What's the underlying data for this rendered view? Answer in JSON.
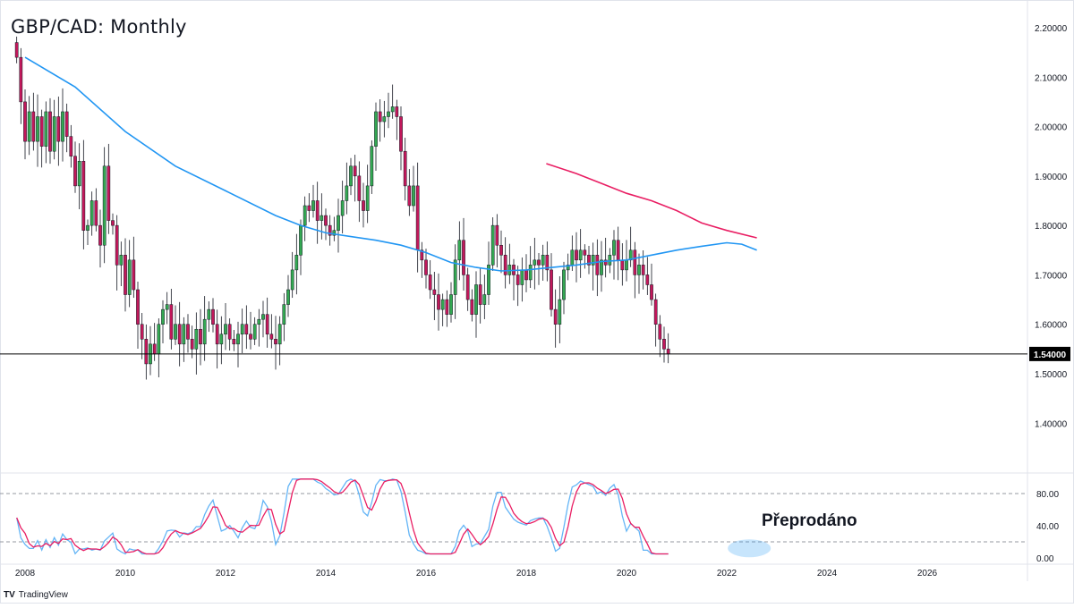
{
  "chart_data": {
    "type": "candlestick",
    "title": "GBP/CAD: Monthly",
    "price_axis": {
      "ticks": [
        "2.20000",
        "2.10000",
        "2.00000",
        "1.90000",
        "1.80000",
        "1.70000",
        "1.60000",
        "1.50000",
        "1.40000"
      ],
      "ylim": [
        1.32,
        2.225
      ]
    },
    "time_axis": {
      "ticks": [
        "2008",
        "2010",
        "2012",
        "2014",
        "2016",
        "2018",
        "2020",
        "2022",
        "2024",
        "2026"
      ]
    },
    "horizontal_line": {
      "value": 1.54,
      "label": "1.54000",
      "color": "#000000"
    },
    "ohlc_closes": [
      2.14,
      2.05,
      1.97,
      2.03,
      1.97,
      2.02,
      1.96,
      2.03,
      1.95,
      2.02,
      1.97,
      2.03,
      1.98,
      1.94,
      1.88,
      1.93,
      1.79,
      1.8,
      1.85,
      1.8,
      1.76,
      1.92,
      1.81,
      1.8,
      1.72,
      1.74,
      1.66,
      1.73,
      1.67,
      1.6,
      1.57,
      1.52,
      1.56,
      1.54,
      1.6,
      1.63,
      1.64,
      1.57,
      1.6,
      1.56,
      1.6,
      1.57,
      1.55,
      1.59,
      1.56,
      1.61,
      1.63,
      1.6,
      1.56,
      1.58,
      1.6,
      1.57,
      1.56,
      1.58,
      1.6,
      1.58,
      1.57,
      1.6,
      1.61,
      1.62,
      1.58,
      1.57,
      1.56,
      1.6,
      1.64,
      1.67,
      1.71,
      1.74,
      1.8,
      1.84,
      1.83,
      1.85,
      1.81,
      1.82,
      1.8,
      1.78,
      1.79,
      1.82,
      1.85,
      1.88,
      1.92,
      1.9,
      1.85,
      1.83,
      1.88,
      1.96,
      2.03,
      2.01,
      2.02,
      2.03,
      2.04,
      2.02,
      1.95,
      1.88,
      1.84,
      1.88,
      1.75,
      1.73,
      1.7,
      1.67,
      1.66,
      1.63,
      1.65,
      1.62,
      1.66,
      1.73,
      1.77,
      1.7,
      1.65,
      1.62,
      1.68,
      1.64,
      1.66,
      1.72,
      1.8,
      1.76,
      1.74,
      1.7,
      1.72,
      1.7,
      1.68,
      1.71,
      1.69,
      1.72,
      1.73,
      1.72,
      1.74,
      1.71,
      1.63,
      1.6,
      1.65,
      1.71,
      1.72,
      1.75,
      1.73,
      1.75,
      1.74,
      1.72,
      1.74,
      1.7,
      1.73,
      1.72,
      1.74,
      1.77,
      1.73,
      1.71,
      1.73,
      1.75,
      1.7,
      1.72,
      1.7,
      1.68,
      1.65,
      1.6,
      1.57,
      1.55,
      1.54
    ],
    "series": [
      {
        "name": "",
        "color": "#2196f3",
        "points": [
          [
            2008.0,
            2.14
          ],
          [
            2009.0,
            2.08
          ],
          [
            2010.0,
            1.99
          ],
          [
            2011.0,
            1.92
          ],
          [
            2012.0,
            1.87
          ],
          [
            2013.0,
            1.82
          ],
          [
            2013.5,
            1.8
          ],
          [
            2014.0,
            1.785
          ],
          [
            2015.0,
            1.77
          ],
          [
            2015.5,
            1.76
          ],
          [
            2016.0,
            1.745
          ],
          [
            2016.5,
            1.725
          ],
          [
            2017.0,
            1.715
          ],
          [
            2017.5,
            1.708
          ],
          [
            2018.0,
            1.71
          ],
          [
            2019.0,
            1.72
          ],
          [
            2019.5,
            1.727
          ],
          [
            2020.0,
            1.73
          ],
          [
            2020.5,
            1.74
          ],
          [
            2021.0,
            1.75
          ],
          [
            2021.5,
            1.758
          ],
          [
            2022.0,
            1.765
          ],
          [
            2022.3,
            1.762
          ],
          [
            2022.6,
            1.75
          ]
        ]
      },
      {
        "name": "",
        "color": "#e91e63",
        "points": [
          [
            2018.4,
            1.925
          ],
          [
            2019.0,
            1.905
          ],
          [
            2019.5,
            1.885
          ],
          [
            2020.0,
            1.865
          ],
          [
            2020.5,
            1.85
          ],
          [
            2021.0,
            1.83
          ],
          [
            2021.5,
            1.805
          ],
          [
            2022.0,
            1.79
          ],
          [
            2022.6,
            1.775
          ]
        ]
      }
    ],
    "oscillator": {
      "ticks": [
        "80.00",
        "40.00",
        "0.00"
      ],
      "levels": [
        80,
        20
      ],
      "ylim": [
        -8,
        104
      ],
      "k_color": "#64b5f6",
      "d_color": "#e91e63"
    },
    "annotation": "Přeprodáno",
    "watermark": "TradingView"
  }
}
